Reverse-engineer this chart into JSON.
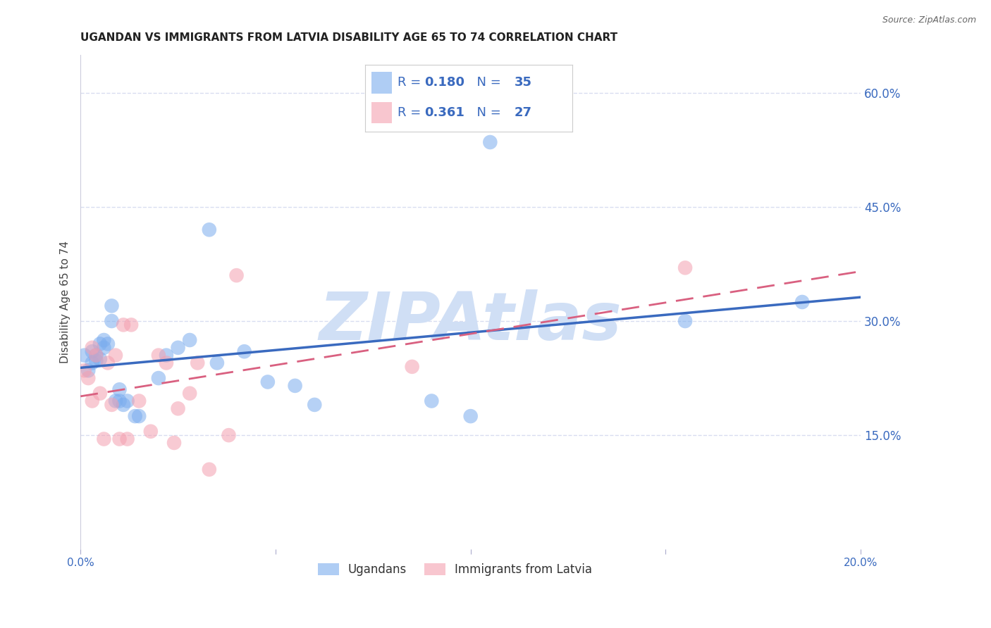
{
  "title": "UGANDAN VS IMMIGRANTS FROM LATVIA DISABILITY AGE 65 TO 74 CORRELATION CHART",
  "source": "Source: ZipAtlas.com",
  "ylabel": "Disability Age 65 to 74",
  "xlim": [
    0.0,
    0.2
  ],
  "ylim": [
    0.0,
    0.65
  ],
  "xticks": [
    0.0,
    0.05,
    0.1,
    0.15,
    0.2
  ],
  "xtick_labels": [
    "0.0%",
    "",
    "",
    "",
    "20.0%"
  ],
  "yticks_right": [
    0.15,
    0.3,
    0.45,
    0.6
  ],
  "ytick_right_labels": [
    "15.0%",
    "30.0%",
    "45.0%",
    "60.0%"
  ],
  "blue_R": 0.18,
  "blue_N": 35,
  "pink_R": 0.361,
  "pink_N": 27,
  "blue_color": "#7aacee",
  "pink_color": "#f4a0b0",
  "blue_label": "Ugandans",
  "pink_label": "Immigrants from Latvia",
  "watermark": "ZIPAtlas",
  "watermark_color": "#d0dff5",
  "blue_line_color": "#3a6abf",
  "pink_line_color": "#d96080",
  "blue_points_x": [
    0.001,
    0.002,
    0.003,
    0.003,
    0.004,
    0.004,
    0.005,
    0.005,
    0.006,
    0.006,
    0.007,
    0.008,
    0.008,
    0.009,
    0.01,
    0.01,
    0.011,
    0.012,
    0.014,
    0.015,
    0.02,
    0.022,
    0.025,
    0.028,
    0.033,
    0.035,
    0.042,
    0.048,
    0.055,
    0.06,
    0.09,
    0.1,
    0.105,
    0.155,
    0.185
  ],
  "blue_points_y": [
    0.255,
    0.235,
    0.245,
    0.26,
    0.255,
    0.248,
    0.27,
    0.25,
    0.265,
    0.275,
    0.27,
    0.32,
    0.3,
    0.195,
    0.21,
    0.195,
    0.19,
    0.195,
    0.175,
    0.175,
    0.225,
    0.255,
    0.265,
    0.275,
    0.42,
    0.245,
    0.26,
    0.22,
    0.215,
    0.19,
    0.195,
    0.175,
    0.535,
    0.3,
    0.325
  ],
  "pink_points_x": [
    0.001,
    0.002,
    0.003,
    0.003,
    0.004,
    0.005,
    0.006,
    0.007,
    0.008,
    0.009,
    0.01,
    0.011,
    0.012,
    0.013,
    0.015,
    0.018,
    0.02,
    0.022,
    0.024,
    0.025,
    0.028,
    0.03,
    0.033,
    0.038,
    0.04,
    0.085,
    0.155
  ],
  "pink_points_y": [
    0.235,
    0.225,
    0.195,
    0.265,
    0.255,
    0.205,
    0.145,
    0.245,
    0.19,
    0.255,
    0.145,
    0.295,
    0.145,
    0.295,
    0.195,
    0.155,
    0.255,
    0.245,
    0.14,
    0.185,
    0.205,
    0.245,
    0.105,
    0.15,
    0.36,
    0.24,
    0.37
  ],
  "grid_color": "#d8ddf0",
  "bg_color": "#ffffff",
  "title_color": "#222222",
  "legend_text_color": "#3a6abf",
  "title_fontsize": 11,
  "axis_label_fontsize": 11,
  "tick_fontsize": 11,
  "legend_fontsize": 13
}
